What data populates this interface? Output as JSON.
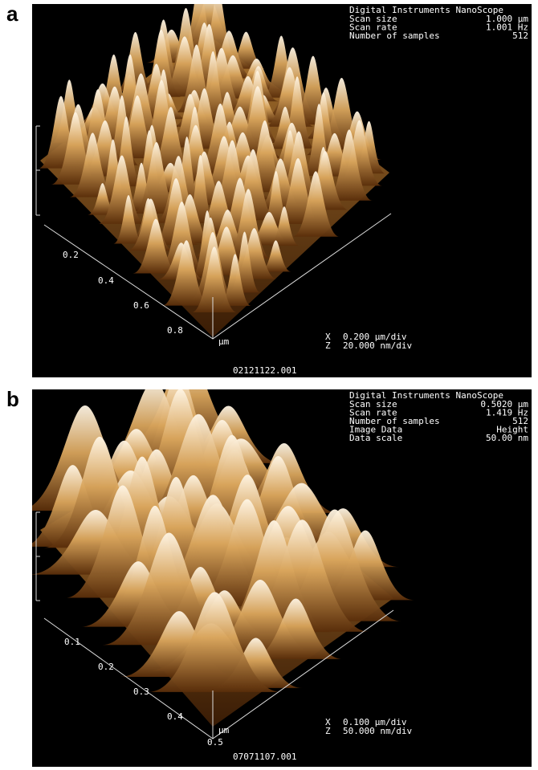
{
  "panels": [
    {
      "label": "a",
      "header": "Digital Instruments NanoScope",
      "params": [
        {
          "name": "Scan size",
          "value": "1.000 µm"
        },
        {
          "name": "Scan rate",
          "value": "1.001 Hz"
        },
        {
          "name": "Number of samples",
          "value": "512"
        }
      ],
      "axis_ticks": [
        "0.2",
        "0.4",
        "0.6",
        "0.8"
      ],
      "axis_unit": "µm",
      "scale": [
        {
          "axis": "X",
          "value": "0.200 µm/div"
        },
        {
          "axis": "Z",
          "value": "20.000 nm/div"
        }
      ],
      "filename": "02121122.001"
    },
    {
      "label": "b",
      "header": "Digital Instruments NanoScope",
      "params": [
        {
          "name": "Scan size",
          "value": "0.5020 µm"
        },
        {
          "name": "Scan rate",
          "value": "1.419 Hz"
        },
        {
          "name": "Number of samples",
          "value": "512"
        },
        {
          "name": "Image Data",
          "value": "Height"
        },
        {
          "name": "Data scale",
          "value": "50.00 nm"
        }
      ],
      "axis_ticks": [
        "0.1",
        "0.2",
        "0.3",
        "0.4",
        "0.5"
      ],
      "axis_unit": "µm",
      "scale": [
        {
          "axis": "X",
          "value": "0.100 µm/div"
        },
        {
          "axis": "Z",
          "value": "50.000 nm/div"
        }
      ],
      "filename": "07071107.001"
    }
  ]
}
